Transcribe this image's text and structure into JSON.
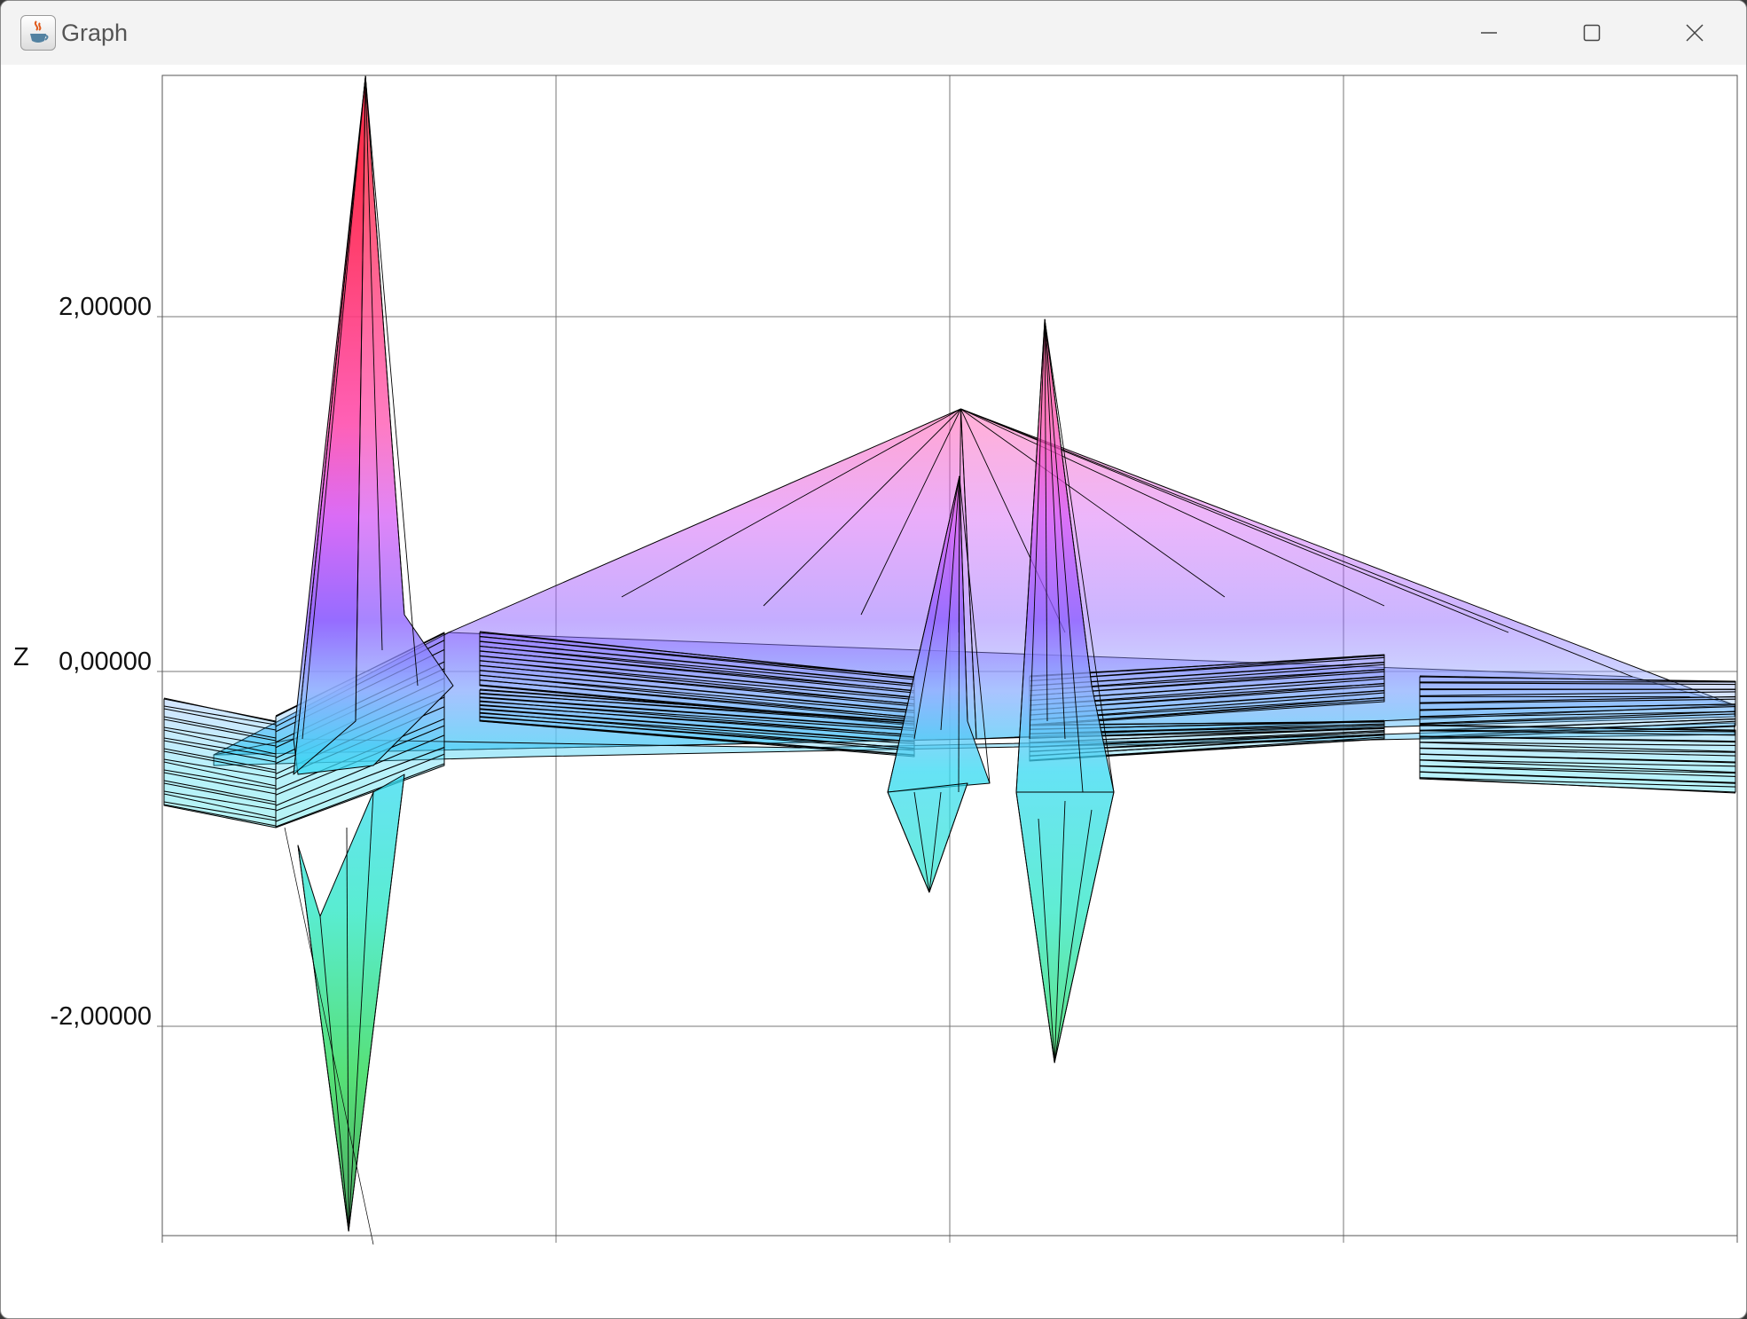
{
  "window": {
    "title": "Graph",
    "icon": "java-coffee-cup-icon",
    "controls": [
      "minimize-icon",
      "maximize-icon",
      "close-icon"
    ]
  },
  "colors": {
    "gradient_top": "#ff1a3c",
    "gradient_mid_high": "#d65cf5",
    "gradient_mid": "#9aa4ff",
    "gradient_low": "#33d9f2",
    "gradient_bottom": "#1ed64a",
    "mesh_line": "#000000",
    "grid": "#7a7a7a"
  },
  "chart_data": {
    "type": "surface-3d-side-view",
    "ylabel": "Z",
    "yticks": [
      "2,00000",
      "0,00000",
      "-2,00000"
    ],
    "ytick_values": [
      2,
      0,
      -2
    ],
    "ylim": [
      -3.2,
      3.35
    ],
    "grid": true,
    "vertical_gridlines": 4,
    "features": [
      {
        "name": "left spike",
        "x": 0.12,
        "zmax": 3.35,
        "zmin": -3.15
      },
      {
        "name": "center pyramid apex",
        "x": 0.507,
        "zmax": 1.48
      },
      {
        "name": "center spike",
        "x": 0.505,
        "zmax": 1.1,
        "zmin": -1.25
      },
      {
        "name": "right spike",
        "x": 0.562,
        "zmax": 1.98,
        "zmin": -2.2
      }
    ]
  }
}
